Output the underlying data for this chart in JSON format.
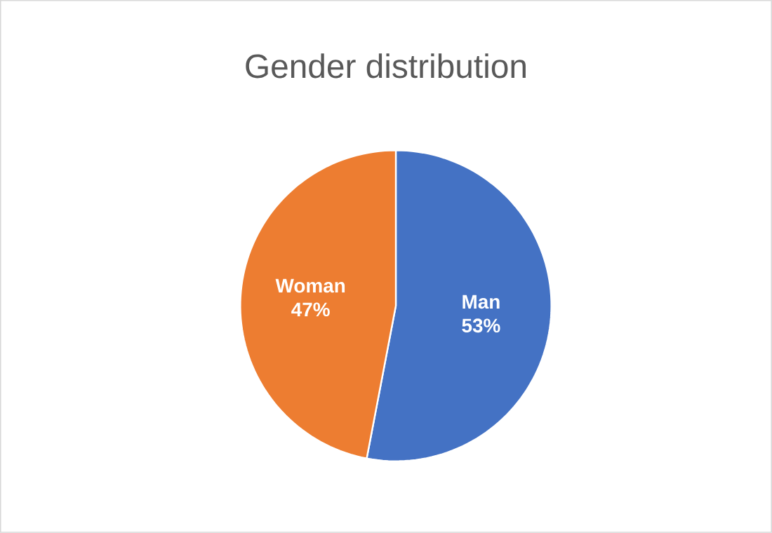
{
  "chart_data": {
    "type": "pie",
    "title": "Gender distribution",
    "categories": [
      "Man",
      "Woman"
    ],
    "values": [
      53,
      47
    ],
    "colors": [
      "#4472c4",
      "#ed7d31"
    ],
    "value_labels": [
      "53%",
      "47%"
    ]
  }
}
